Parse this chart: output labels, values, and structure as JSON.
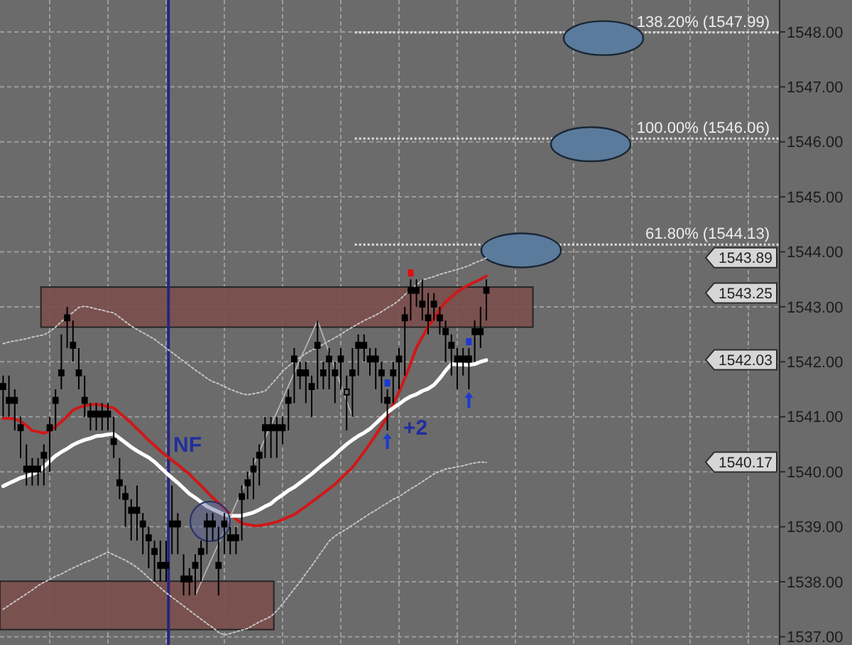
{
  "chart_data": {
    "type": "candlestick",
    "categories": [
      null,
      null,
      null,
      null,
      null,
      null,
      null,
      null,
      null,
      null,
      null,
      null,
      null,
      null,
      null,
      null,
      null,
      null,
      null,
      null,
      null,
      null,
      null,
      null,
      null,
      null,
      null,
      null,
      null,
      null,
      null,
      null,
      null,
      null,
      null,
      null,
      null,
      null,
      null,
      null,
      null,
      null,
      null,
      null,
      null,
      null,
      null,
      null,
      null,
      null,
      null,
      null,
      null,
      null,
      null,
      null,
      null,
      null,
      null,
      null,
      null,
      null,
      null,
      null,
      null,
      null,
      null,
      null,
      null,
      null,
      null,
      null,
      null,
      null,
      null,
      null,
      null,
      null,
      null,
      null,
      null,
      null,
      null,
      null
    ],
    "ohlc": [
      [
        1541.6,
        1541.75,
        1541.0,
        1541.5
      ],
      [
        1541.35,
        1541.75,
        1541.0,
        1541.25
      ],
      [
        1541.35,
        1541.5,
        1540.75,
        1541.25
      ],
      [
        1540.85,
        1541.0,
        1540.25,
        1540.75
      ],
      [
        1540.1,
        1540.5,
        1539.75,
        1540.0
      ],
      [
        1540.1,
        1540.25,
        1539.75,
        1540.0
      ],
      [
        1540.1,
        1540.25,
        1539.75,
        1540.0
      ],
      [
        1540.35,
        1540.5,
        1539.75,
        1540.25
      ],
      [
        1540.85,
        1541.0,
        1540.0,
        1540.75
      ],
      [
        1541.35,
        1541.5,
        1540.75,
        1541.25
      ],
      [
        1541.85,
        1542.5,
        1541.5,
        1541.75
      ],
      [
        1542.85,
        1543.0,
        1542.25,
        1542.75
      ],
      [
        1542.35,
        1542.75,
        1542.0,
        1542.25
      ],
      [
        1541.85,
        1542.25,
        1541.5,
        1541.75
      ],
      [
        1541.35,
        1541.75,
        1541.0,
        1541.25
      ],
      [
        1541.1,
        1541.25,
        1540.75,
        1541.0
      ],
      [
        1541.1,
        1541.25,
        1540.75,
        1541.0
      ],
      [
        1541.1,
        1541.25,
        1540.75,
        1541.0
      ],
      [
        1541.1,
        1541.25,
        1540.75,
        1541.0
      ],
      [
        1540.6,
        1541.0,
        1540.25,
        1540.5
      ],
      [
        1539.85,
        1540.25,
        1539.5,
        1539.75
      ],
      [
        1539.6,
        1539.75,
        1539.0,
        1539.5
      ],
      [
        1539.35,
        1539.5,
        1538.75,
        1539.25
      ],
      [
        1539.35,
        1539.75,
        1538.75,
        1539.25
      ],
      [
        1539.1,
        1539.25,
        1538.5,
        1539.0
      ],
      [
        1538.85,
        1539.0,
        1538.25,
        1538.75
      ],
      [
        1538.6,
        1538.75,
        1538.0,
        1538.5
      ],
      [
        1538.35,
        1538.75,
        1538.0,
        1538.25
      ],
      [
        1538.35,
        1538.75,
        1538.0,
        1538.25
      ],
      [
        1539.1,
        1539.75,
        1538.5,
        1539.0
      ],
      [
        1539.1,
        1539.25,
        1538.5,
        1539.0
      ],
      [
        1538.1,
        1538.5,
        1537.75,
        1538.0
      ],
      [
        1538.1,
        1538.25,
        1537.75,
        1538.0
      ],
      [
        1538.35,
        1538.5,
        1537.75,
        1538.25
      ],
      [
        1538.6,
        1538.75,
        1538.0,
        1538.5
      ],
      [
        1539.1,
        1539.25,
        1538.5,
        1539.0
      ],
      [
        1539.1,
        1539.25,
        1538.75,
        1539.0
      ],
      [
        1538.35,
        1539.0,
        1537.75,
        1538.25
      ],
      [
        1539.1,
        1539.25,
        1538.5,
        1539.0
      ],
      [
        1538.85,
        1539.0,
        1538.5,
        1538.75
      ],
      [
        1538.85,
        1539.0,
        1538.5,
        1538.75
      ],
      [
        1539.6,
        1539.75,
        1538.75,
        1539.5
      ],
      [
        1539.85,
        1540.0,
        1539.5,
        1539.75
      ],
      [
        1540.1,
        1540.25,
        1539.5,
        1540.0
      ],
      [
        1540.35,
        1540.5,
        1539.75,
        1540.25
      ],
      [
        1540.85,
        1541.0,
        1540.25,
        1540.75
      ],
      [
        1540.85,
        1541.0,
        1540.25,
        1540.75
      ],
      [
        1540.85,
        1541.0,
        1540.25,
        1540.75
      ],
      [
        1540.85,
        1541.0,
        1540.5,
        1540.75
      ],
      [
        1541.35,
        1541.5,
        1540.75,
        1541.25
      ],
      [
        1542.1,
        1542.25,
        1541.25,
        1542.0
      ],
      [
        1541.85,
        1542.0,
        1541.5,
        1541.75
      ],
      [
        1541.85,
        1542.0,
        1541.25,
        1541.75
      ],
      [
        1541.6,
        1541.75,
        1541.0,
        1541.5
      ],
      [
        1542.35,
        1542.75,
        1541.5,
        1542.25
      ],
      [
        1541.85,
        1542.0,
        1541.5,
        1541.75
      ],
      [
        1542.1,
        1542.25,
        1541.5,
        1542.0
      ],
      [
        1541.85,
        1542.0,
        1541.25,
        1541.75
      ],
      [
        1542.1,
        1542.25,
        1541.5,
        1542.0
      ],
      [
        1541.4,
        1541.75,
        1540.75,
        1541.5
      ],
      [
        1541.85,
        1542.25,
        1541.0,
        1541.75
      ],
      [
        1542.35,
        1542.5,
        1541.75,
        1542.25
      ],
      [
        1542.35,
        1542.5,
        1542.0,
        1542.25
      ],
      [
        1542.1,
        1542.25,
        1541.75,
        1542.0
      ],
      [
        1542.1,
        1542.25,
        1541.5,
        1542.0
      ],
      [
        1541.85,
        1542.0,
        1541.25,
        1541.75
      ],
      [
        1541.35,
        1541.5,
        1540.75,
        1541.25
      ],
      [
        1541.85,
        1542.0,
        1541.25,
        1541.75
      ],
      [
        1542.1,
        1542.25,
        1541.5,
        1542.0
      ],
      [
        1542.85,
        1543.0,
        1541.75,
        1542.75
      ],
      [
        1543.35,
        1543.5,
        1542.75,
        1543.25
      ],
      [
        1543.35,
        1543.5,
        1543.0,
        1543.25
      ],
      [
        1543.1,
        1543.5,
        1542.75,
        1543.0
      ],
      [
        1542.85,
        1543.25,
        1542.5,
        1542.75
      ],
      [
        1543.1,
        1543.25,
        1542.75,
        1543.0
      ],
      [
        1542.85,
        1543.0,
        1542.5,
        1542.75
      ],
      [
        1542.6,
        1542.75,
        1542.0,
        1542.5
      ],
      [
        1542.35,
        1542.5,
        1541.75,
        1542.25
      ],
      [
        1542.1,
        1542.25,
        1541.5,
        1542.0
      ],
      [
        1542.1,
        1542.25,
        1541.75,
        1542.0
      ],
      [
        1542.1,
        1542.25,
        1541.5,
        1542.0
      ],
      [
        1542.6,
        1542.75,
        1542.0,
        1542.5
      ],
      [
        1542.6,
        1543.0,
        1542.25,
        1542.5
      ],
      [
        1543.35,
        1543.5,
        1542.75,
        1543.25
      ]
    ],
    "series": [
      {
        "type": "line",
        "color": "#d01818",
        "values": [
          1540.97,
          1540.97,
          1540.96,
          1540.92,
          1540.84,
          1540.75,
          1540.73,
          1540.7,
          1540.74,
          1540.82,
          1540.91,
          1541.01,
          1541.12,
          1541.17,
          1541.2,
          1541.22,
          1541.23,
          1541.21,
          1541.18,
          1541.16,
          1541.07,
          1540.98,
          1540.89,
          1540.78,
          1540.68,
          1540.57,
          1540.48,
          1540.38,
          1540.29,
          1540.21,
          1540.13,
          1540.04,
          1539.96,
          1539.85,
          1539.75,
          1539.64,
          1539.53,
          1539.43,
          1539.33,
          1539.23,
          1539.14,
          1539.06,
          1539.04,
          1539.02,
          1539.02,
          1539.04,
          1539.06,
          1539.09,
          1539.13,
          1539.18,
          1539.22,
          1539.3,
          1539.37,
          1539.45,
          1539.53,
          1539.61,
          1539.69,
          1539.77,
          1539.88,
          1539.98,
          1540.08,
          1540.22,
          1540.36,
          1540.51,
          1540.67,
          1540.83,
          1541.0,
          1541.23,
          1541.45,
          1541.7,
          1541.97,
          1542.26,
          1542.45,
          1542.64,
          1542.79,
          1542.95,
          1543.09,
          1543.18,
          1543.27,
          1543.34,
          1543.4,
          1543.45,
          1543.5,
          1543.56
        ]
      },
      {
        "type": "line",
        "color": "#ffffff",
        "values": [
          1539.74,
          1539.79,
          1539.84,
          1539.89,
          1539.92,
          1539.96,
          1540.0,
          1540.09,
          1540.19,
          1540.29,
          1540.36,
          1540.42,
          1540.49,
          1540.54,
          1540.58,
          1540.61,
          1540.65,
          1540.66,
          1540.68,
          1540.69,
          1540.61,
          1540.53,
          1540.45,
          1540.38,
          1540.32,
          1540.26,
          1540.18,
          1540.08,
          1539.98,
          1539.89,
          1539.8,
          1539.7,
          1539.6,
          1539.53,
          1539.45,
          1539.37,
          1539.32,
          1539.27,
          1539.22,
          1539.2,
          1539.2,
          1539.2,
          1539.23,
          1539.26,
          1539.31,
          1539.37,
          1539.42,
          1539.51,
          1539.58,
          1539.66,
          1539.72,
          1539.8,
          1539.88,
          1539.96,
          1540.05,
          1540.14,
          1540.22,
          1540.31,
          1540.41,
          1540.5,
          1540.58,
          1540.65,
          1540.71,
          1540.78,
          1540.88,
          1540.98,
          1541.08,
          1541.16,
          1541.23,
          1541.31,
          1541.37,
          1541.41,
          1541.47,
          1541.51,
          1541.58,
          1541.7,
          1541.84,
          1541.96,
          1541.95,
          1541.95,
          1541.94,
          1541.96,
          1542.0,
          1542.03
        ]
      },
      {
        "type": "line",
        "color": "#c4c4c4",
        "line_style": "dotted",
        "values": [
          1542.33,
          1542.36,
          1542.38,
          1542.4,
          1542.42,
          1542.45,
          1542.47,
          1542.49,
          1542.55,
          1542.63,
          1542.73,
          1542.82,
          1542.9,
          1542.99,
          1543.01,
          1542.99,
          1542.96,
          1542.94,
          1542.91,
          1542.89,
          1542.81,
          1542.73,
          1542.65,
          1542.59,
          1542.53,
          1542.47,
          1542.41,
          1542.33,
          1542.25,
          1542.17,
          1542.09,
          1542.01,
          1541.93,
          1541.85,
          1541.78,
          1541.7,
          1541.64,
          1541.6,
          1541.55,
          1541.5,
          1541.46,
          1541.42,
          1541.4,
          1541.42,
          1541.44,
          1541.47,
          1541.58,
          1541.7,
          1541.83,
          1541.92,
          1542.0,
          1542.08,
          1542.15,
          1542.21,
          1542.26,
          1542.32,
          1542.38,
          1542.44,
          1542.5,
          1542.57,
          1542.63,
          1542.69,
          1542.75,
          1542.8,
          1542.85,
          1542.91,
          1542.98,
          1543.04,
          1543.12,
          1543.22,
          1543.31,
          1543.4,
          1543.49,
          1543.52,
          1543.55,
          1543.59,
          1543.62,
          1543.65,
          1543.68,
          1543.71,
          1543.75,
          1543.8,
          1543.84,
          1543.89
        ]
      },
      {
        "type": "line",
        "color": "#c4c4c4",
        "line_style": "dotted",
        "values": [
          1537.5,
          1537.57,
          1537.64,
          1537.71,
          1537.78,
          1537.85,
          1537.93,
          1537.99,
          1538.04,
          1538.1,
          1538.14,
          1538.2,
          1538.25,
          1538.3,
          1538.35,
          1538.39,
          1538.44,
          1538.49,
          1538.54,
          1538.49,
          1538.44,
          1538.39,
          1538.33,
          1538.26,
          1538.17,
          1538.07,
          1537.98,
          1537.89,
          1537.8,
          1537.72,
          1537.64,
          1537.56,
          1537.48,
          1537.4,
          1537.32,
          1537.24,
          1537.17,
          1537.08,
          1537.03,
          1537.06,
          1537.09,
          1537.12,
          1537.15,
          1537.21,
          1537.27,
          1537.32,
          1537.37,
          1537.47,
          1537.6,
          1537.73,
          1537.87,
          1538.0,
          1538.15,
          1538.29,
          1538.44,
          1538.59,
          1538.74,
          1538.83,
          1538.9,
          1538.96,
          1539.03,
          1539.1,
          1539.17,
          1539.24,
          1539.3,
          1539.37,
          1539.43,
          1539.5,
          1539.55,
          1539.62,
          1539.69,
          1539.75,
          1539.82,
          1539.89,
          1539.96,
          1540.01,
          1540.05,
          1540.07,
          1540.09,
          1540.11,
          1540.14,
          1540.16,
          1540.18,
          1540.17
        ]
      },
      {
        "type": "line",
        "color": "#b4b4b4",
        "values": [
          null,
          null,
          null,
          null,
          null,
          null,
          null,
          null,
          null,
          null,
          null,
          null,
          null,
          null,
          null,
          null,
          null,
          null,
          null,
          null,
          null,
          null,
          null,
          null,
          null,
          null,
          null,
          null,
          null,
          null,
          null,
          null,
          null,
          1537.75,
          1537.99,
          1538.23,
          1538.46,
          1538.7,
          1538.94,
          1539.18,
          1539.42,
          1539.65,
          1539.89,
          1540.13,
          1540.37,
          1540.61,
          1540.85,
          1541.08,
          1541.32,
          1541.56,
          1541.8,
          1542.04,
          1542.27,
          1542.51,
          1542.75,
          1542.46,
          1542.17,
          1541.88,
          1541.58,
          1541.29,
          1541.0,
          null,
          null,
          null,
          null,
          null,
          null,
          null,
          null,
          null,
          null,
          null,
          null,
          null,
          null,
          null,
          null,
          null,
          null,
          null,
          null,
          null,
          null,
          null
        ]
      }
    ],
    "ylim": [
      1536.85,
      1548.58
    ],
    "yticks": [
      {
        "value": 1537,
        "label": "1537.00"
      },
      {
        "value": 1538,
        "label": "1538.00"
      },
      {
        "value": 1539,
        "label": "1539.00"
      },
      {
        "value": 1540,
        "label": "1540.00"
      },
      {
        "value": 1541,
        "label": "1541.00"
      },
      {
        "value": 1542,
        "label": "1542.00"
      },
      {
        "value": 1543,
        "label": "1543.00"
      },
      {
        "value": 1544,
        "label": "1544.00"
      },
      {
        "value": 1545,
        "label": "1545.00"
      },
      {
        "value": 1546,
        "label": "1546.00"
      },
      {
        "value": 1547,
        "label": "1547.00"
      },
      {
        "value": 1548,
        "label": "1548.00"
      }
    ],
    "tick_labels": "y",
    "grid": true,
    "bands": [
      {
        "axis": "y",
        "from": 1542.63,
        "to": 1543.36,
        "color": "#7b4f4d"
      },
      {
        "axis": "y",
        "from": 1537.13,
        "to": 1538.01,
        "color": "#7b4f4d"
      }
    ],
    "ref_lines": [
      {
        "axis": "y",
        "value": 1547.99,
        "label": "138.20% (1547.99)",
        "color": "#d9d9d9",
        "line_style": "dotted"
      },
      {
        "axis": "y",
        "value": 1546.06,
        "label": "100.00% (1546.06)",
        "color": "#d9d9d9",
        "line_style": "dotted"
      },
      {
        "axis": "y",
        "value": 1544.13,
        "label": "61.80% (1544.13)",
        "color": "#d9d9d9",
        "line_style": "dotted"
      }
    ],
    "annotations": [
      "NF",
      "+2",
      "1543.89",
      "1543.25",
      "1542.03",
      "1540.17"
    ]
  }
}
